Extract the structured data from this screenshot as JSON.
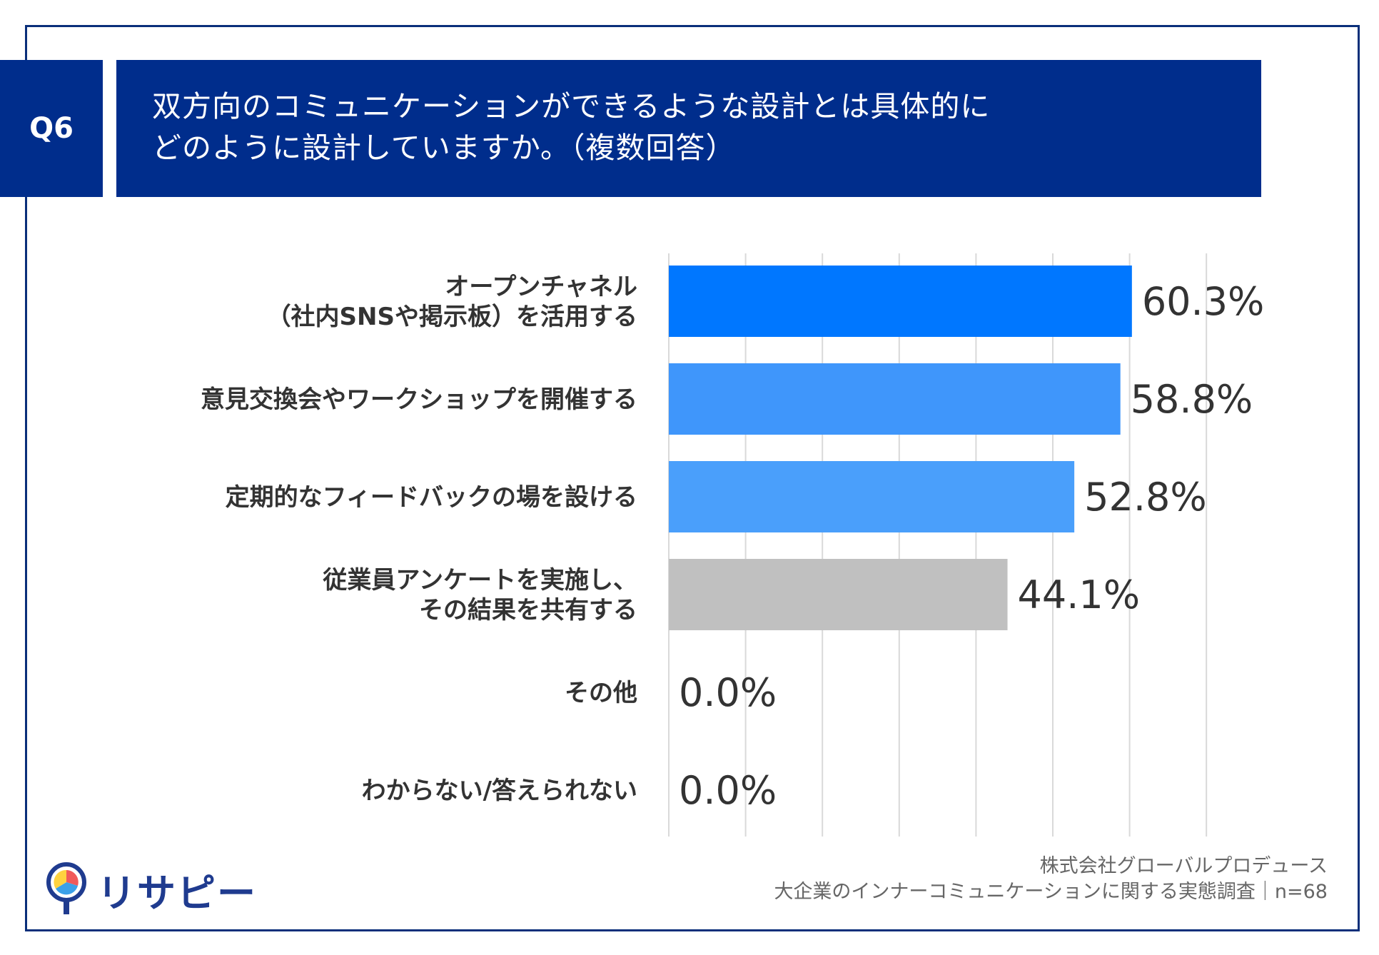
{
  "header": {
    "question_no": "Q6",
    "title_line1": "双方向のコミュニケーションができるような設計とは具体的に",
    "title_line2": "どのように設計していますか。（複数回答）"
  },
  "chart_data": {
    "type": "bar",
    "orientation": "horizontal",
    "title": "双方向のコミュニケーションができるような設計とは具体的にどのように設計していますか。（複数回答）",
    "unit": "%",
    "xlim": [
      0,
      70
    ],
    "grid": true,
    "categories": [
      [
        "オープンチャネル",
        "（社内SNSや掲示板）を活用する"
      ],
      [
        "意見交換会やワークショップを開催する"
      ],
      [
        "定期的なフィードバックの場を設ける"
      ],
      [
        "従業員アンケートを実施し、",
        "その結果を共有する"
      ],
      [
        "その他"
      ],
      [
        "わからない/答えられない"
      ]
    ],
    "values": [
      60.3,
      58.8,
      52.8,
      44.1,
      0.0,
      0.0
    ],
    "value_labels": [
      "60.3%",
      "58.8%",
      "52.8%",
      "44.1%",
      "0.0%",
      "0.0%"
    ],
    "colors": [
      "#0077ff",
      "#3f96fb",
      "#4a9ffb",
      "#c0c0c0",
      "#c0c0c0",
      "#c0c0c0"
    ]
  },
  "footer": {
    "company": "株式会社グローバルプロデュース",
    "survey": "大企業のインナーコミュニケーションに関する実態調査｜n=68"
  },
  "logo": {
    "text": "リサピー",
    "icon": "lightbulb-pin-icon"
  }
}
